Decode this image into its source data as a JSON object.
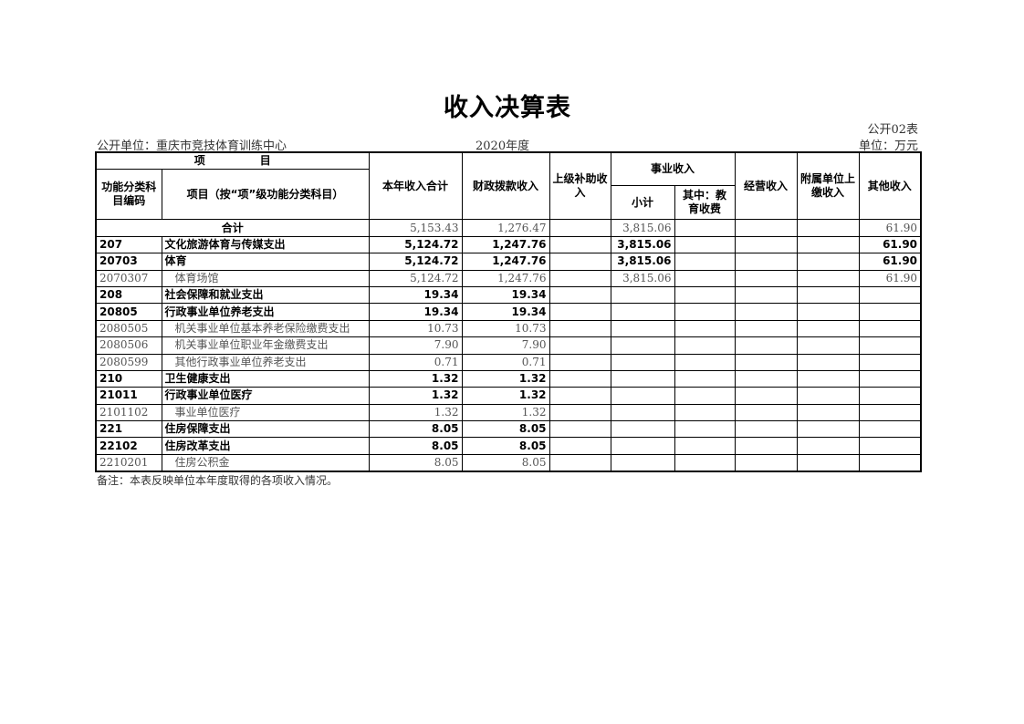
{
  "title": "收入决算表",
  "form_no": "公开02表",
  "unit_label": "公开单位：重庆市竞技体育训练中心",
  "year": "2020年度",
  "currency": "单位：万元",
  "headers": {
    "item": "项　　　　　目",
    "code": "功能分类科目编码",
    "name": "项目（按“项”级功能分类科目）",
    "total": "本年收入合计",
    "fiscal": "财政拨款收入",
    "superior": "上级补助收入",
    "business": "事业收入",
    "subtotal": "小计",
    "edu": "其中：教育收费",
    "operating": "经营收入",
    "affiliated": "附属单位上缴收入",
    "other": "其他收入"
  },
  "total_row": {
    "label": "合计",
    "total": "5,153.43",
    "fiscal": "1,276.47",
    "superior": "",
    "subtotal": "3,815.06",
    "edu": "",
    "operating": "",
    "affiliated": "",
    "other": "61.90"
  },
  "rows": [
    {
      "level": "b",
      "code": "207",
      "name": "文化旅游体育与传媒支出",
      "total": "5,124.72",
      "fiscal": "1,247.76",
      "superior": "",
      "subtotal": "3,815.06",
      "edu": "",
      "operating": "",
      "affiliated": "",
      "other": "61.90"
    },
    {
      "level": "b",
      "code": "20703",
      "name": "体育",
      "total": "5,124.72",
      "fiscal": "1,247.76",
      "superior": "",
      "subtotal": "3,815.06",
      "edu": "",
      "operating": "",
      "affiliated": "",
      "other": "61.90"
    },
    {
      "level": "d",
      "code": "2070307",
      "name": "体育场馆",
      "total": "5,124.72",
      "fiscal": "1,247.76",
      "superior": "",
      "subtotal": "3,815.06",
      "edu": "",
      "operating": "",
      "affiliated": "",
      "other": "61.90"
    },
    {
      "level": "b",
      "code": "208",
      "name": "社会保障和就业支出",
      "total": "19.34",
      "fiscal": "19.34",
      "superior": "",
      "subtotal": "",
      "edu": "",
      "operating": "",
      "affiliated": "",
      "other": ""
    },
    {
      "level": "b",
      "code": "20805",
      "name": "行政事业单位养老支出",
      "total": "19.34",
      "fiscal": "19.34",
      "superior": "",
      "subtotal": "",
      "edu": "",
      "operating": "",
      "affiliated": "",
      "other": ""
    },
    {
      "level": "d",
      "code": "2080505",
      "name": "机关事业单位基本养老保险缴费支出",
      "total": "10.73",
      "fiscal": "10.73",
      "superior": "",
      "subtotal": "",
      "edu": "",
      "operating": "",
      "affiliated": "",
      "other": ""
    },
    {
      "level": "d",
      "code": "2080506",
      "name": "机关事业单位职业年金缴费支出",
      "total": "7.90",
      "fiscal": "7.90",
      "superior": "",
      "subtotal": "",
      "edu": "",
      "operating": "",
      "affiliated": "",
      "other": ""
    },
    {
      "level": "d",
      "code": "2080599",
      "name": "其他行政事业单位养老支出",
      "total": "0.71",
      "fiscal": "0.71",
      "superior": "",
      "subtotal": "",
      "edu": "",
      "operating": "",
      "affiliated": "",
      "other": ""
    },
    {
      "level": "b",
      "code": "210",
      "name": "卫生健康支出",
      "total": "1.32",
      "fiscal": "1.32",
      "superior": "",
      "subtotal": "",
      "edu": "",
      "operating": "",
      "affiliated": "",
      "other": ""
    },
    {
      "level": "b",
      "code": "21011",
      "name": "行政事业单位医疗",
      "total": "1.32",
      "fiscal": "1.32",
      "superior": "",
      "subtotal": "",
      "edu": "",
      "operating": "",
      "affiliated": "",
      "other": ""
    },
    {
      "level": "d",
      "code": "2101102",
      "name": "事业单位医疗",
      "total": "1.32",
      "fiscal": "1.32",
      "superior": "",
      "subtotal": "",
      "edu": "",
      "operating": "",
      "affiliated": "",
      "other": ""
    },
    {
      "level": "b",
      "code": "221",
      "name": "住房保障支出",
      "total": "8.05",
      "fiscal": "8.05",
      "superior": "",
      "subtotal": "",
      "edu": "",
      "operating": "",
      "affiliated": "",
      "other": ""
    },
    {
      "level": "b",
      "code": "22102",
      "name": "住房改革支出",
      "total": "8.05",
      "fiscal": "8.05",
      "superior": "",
      "subtotal": "",
      "edu": "",
      "operating": "",
      "affiliated": "",
      "other": ""
    },
    {
      "level": "d",
      "code": "2210201",
      "name": "住房公积金",
      "total": "8.05",
      "fiscal": "8.05",
      "superior": "",
      "subtotal": "",
      "edu": "",
      "operating": "",
      "affiliated": "",
      "other": ""
    }
  ],
  "note": "备注：本表反映单位本年度取得的各项收入情况。"
}
